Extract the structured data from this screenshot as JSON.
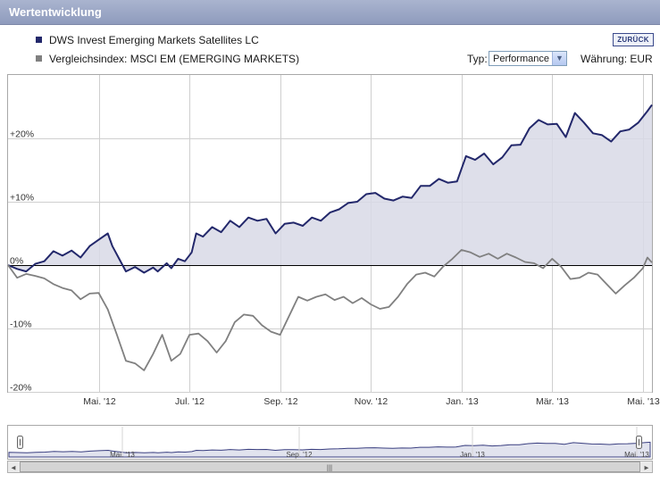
{
  "header": {
    "title": "Wertentwicklung"
  },
  "legend": {
    "fund": {
      "label": "DWS Invest Emerging Markets Satellites LC",
      "color": "#23286b"
    },
    "index": {
      "label": "Vergleichsindex: MSCI EM (EMERGING MARKETS)",
      "color": "#808080"
    }
  },
  "controls": {
    "back_label": "ZURÜCK",
    "typ_label": "Typ:",
    "typ_value": "Performance",
    "currency_label": "Währung: EUR"
  },
  "navigator": {
    "tick_labels": [
      "Mai. '13",
      "Sep. '12",
      "Jan. '13",
      "Mai. '13"
    ]
  },
  "chart_data": {
    "type": "line",
    "x_unit": "months since Mar 2012 start",
    "xlim": [
      0,
      14.2
    ],
    "ylim": [
      -20,
      30
    ],
    "y_ticks": [
      {
        "v": 20,
        "label": "+20%"
      },
      {
        "v": 10,
        "label": "+10%"
      },
      {
        "v": 0,
        "label": "0%"
      },
      {
        "v": -10,
        "label": "-10%"
      },
      {
        "v": -20,
        "label": "-20%"
      }
    ],
    "x_ticks": [
      {
        "v": 2,
        "label": "Mai. '12"
      },
      {
        "v": 4,
        "label": "Jul. '12"
      },
      {
        "v": 6,
        "label": "Sep. '12"
      },
      {
        "v": 8,
        "label": "Nov. '12"
      },
      {
        "v": 10,
        "label": "Jan. '13"
      },
      {
        "v": 12,
        "label": "Mär. '13"
      },
      {
        "v": 14,
        "label": "Mai. '13"
      }
    ],
    "grid": true,
    "series": [
      {
        "name": "DWS Invest Emerging Markets Satellites LC",
        "color": "#23286b",
        "fill": "#d8d9e6",
        "points": [
          [
            0,
            0
          ],
          [
            0.2,
            -0.6
          ],
          [
            0.4,
            -1.0
          ],
          [
            0.6,
            0.2
          ],
          [
            0.8,
            0.6
          ],
          [
            1.0,
            2.2
          ],
          [
            1.2,
            1.5
          ],
          [
            1.4,
            2.3
          ],
          [
            1.6,
            1.2
          ],
          [
            1.8,
            3.0
          ],
          [
            2.0,
            4.0
          ],
          [
            2.2,
            5.0
          ],
          [
            2.3,
            3.0
          ],
          [
            2.45,
            1.0
          ],
          [
            2.6,
            -1.0
          ],
          [
            2.8,
            -0.3
          ],
          [
            3.0,
            -1.2
          ],
          [
            3.2,
            -0.4
          ],
          [
            3.3,
            -1.0
          ],
          [
            3.5,
            0.3
          ],
          [
            3.6,
            -0.5
          ],
          [
            3.75,
            1.0
          ],
          [
            3.9,
            0.6
          ],
          [
            4.05,
            2.0
          ],
          [
            4.15,
            5.0
          ],
          [
            4.3,
            4.5
          ],
          [
            4.5,
            6.0
          ],
          [
            4.7,
            5.2
          ],
          [
            4.9,
            7.0
          ],
          [
            5.1,
            6.0
          ],
          [
            5.3,
            7.5
          ],
          [
            5.5,
            7.0
          ],
          [
            5.7,
            7.3
          ],
          [
            5.9,
            5.0
          ],
          [
            6.1,
            6.5
          ],
          [
            6.3,
            6.7
          ],
          [
            6.5,
            6.2
          ],
          [
            6.7,
            7.5
          ],
          [
            6.9,
            7.0
          ],
          [
            7.1,
            8.3
          ],
          [
            7.3,
            8.8
          ],
          [
            7.5,
            9.8
          ],
          [
            7.7,
            10.0
          ],
          [
            7.9,
            11.2
          ],
          [
            8.1,
            11.4
          ],
          [
            8.3,
            10.5
          ],
          [
            8.5,
            10.2
          ],
          [
            8.7,
            10.8
          ],
          [
            8.9,
            10.6
          ],
          [
            9.1,
            12.5
          ],
          [
            9.3,
            12.5
          ],
          [
            9.5,
            13.6
          ],
          [
            9.7,
            13.0
          ],
          [
            9.9,
            13.2
          ],
          [
            10.1,
            17.2
          ],
          [
            10.3,
            16.6
          ],
          [
            10.5,
            17.6
          ],
          [
            10.7,
            15.9
          ],
          [
            10.9,
            17.0
          ],
          [
            11.1,
            18.9
          ],
          [
            11.3,
            19.0
          ],
          [
            11.5,
            21.6
          ],
          [
            11.7,
            22.9
          ],
          [
            11.9,
            22.2
          ],
          [
            12.1,
            22.3
          ],
          [
            12.3,
            20.2
          ],
          [
            12.5,
            24.0
          ],
          [
            12.7,
            22.5
          ],
          [
            12.9,
            20.8
          ],
          [
            13.1,
            20.5
          ],
          [
            13.3,
            19.5
          ],
          [
            13.5,
            21.1
          ],
          [
            13.7,
            21.4
          ],
          [
            13.9,
            22.5
          ],
          [
            14.1,
            24.3
          ],
          [
            14.2,
            25.3
          ]
        ]
      },
      {
        "name": "Vergleichsindex: MSCI EM (EMERGING MARKETS)",
        "color": "#808080",
        "points": [
          [
            0,
            0
          ],
          [
            0.2,
            -2.0
          ],
          [
            0.4,
            -1.4
          ],
          [
            0.6,
            -1.7
          ],
          [
            0.8,
            -2.1
          ],
          [
            1.0,
            -3.0
          ],
          [
            1.2,
            -3.6
          ],
          [
            1.4,
            -4.0
          ],
          [
            1.6,
            -5.4
          ],
          [
            1.8,
            -4.5
          ],
          [
            2.0,
            -4.4
          ],
          [
            2.2,
            -7.0
          ],
          [
            2.4,
            -11.0
          ],
          [
            2.6,
            -15.1
          ],
          [
            2.8,
            -15.5
          ],
          [
            3.0,
            -16.6
          ],
          [
            3.2,
            -14.0
          ],
          [
            3.4,
            -11.0
          ],
          [
            3.6,
            -15.1
          ],
          [
            3.8,
            -14.0
          ],
          [
            4.0,
            -11.0
          ],
          [
            4.2,
            -10.8
          ],
          [
            4.4,
            -12.0
          ],
          [
            4.6,
            -13.8
          ],
          [
            4.8,
            -12.0
          ],
          [
            5.0,
            -9.0
          ],
          [
            5.2,
            -7.8
          ],
          [
            5.4,
            -8.0
          ],
          [
            5.6,
            -9.5
          ],
          [
            5.8,
            -10.5
          ],
          [
            6.0,
            -11.0
          ],
          [
            6.2,
            -8.0
          ],
          [
            6.4,
            -5.0
          ],
          [
            6.6,
            -5.6
          ],
          [
            6.8,
            -5.0
          ],
          [
            7.0,
            -4.6
          ],
          [
            7.2,
            -5.5
          ],
          [
            7.4,
            -5.0
          ],
          [
            7.6,
            -6.0
          ],
          [
            7.8,
            -5.2
          ],
          [
            8.0,
            -6.2
          ],
          [
            8.2,
            -6.9
          ],
          [
            8.4,
            -6.6
          ],
          [
            8.6,
            -5.0
          ],
          [
            8.8,
            -3.0
          ],
          [
            9.0,
            -1.5
          ],
          [
            9.2,
            -1.2
          ],
          [
            9.4,
            -1.8
          ],
          [
            9.6,
            -0.2
          ],
          [
            9.8,
            1.0
          ],
          [
            10.0,
            2.4
          ],
          [
            10.2,
            2.0
          ],
          [
            10.4,
            1.3
          ],
          [
            10.6,
            1.8
          ],
          [
            10.8,
            1.0
          ],
          [
            11.0,
            1.8
          ],
          [
            11.2,
            1.2
          ],
          [
            11.4,
            0.5
          ],
          [
            11.6,
            0.3
          ],
          [
            11.8,
            -0.5
          ],
          [
            12.0,
            1.0
          ],
          [
            12.2,
            -0.3
          ],
          [
            12.4,
            -2.2
          ],
          [
            12.6,
            -2.0
          ],
          [
            12.8,
            -1.2
          ],
          [
            13.0,
            -1.5
          ],
          [
            13.2,
            -3.0
          ],
          [
            13.4,
            -4.5
          ],
          [
            13.6,
            -3.2
          ],
          [
            13.8,
            -2.0
          ],
          [
            14.0,
            -0.5
          ],
          [
            14.1,
            1.2
          ],
          [
            14.2,
            0.4
          ]
        ]
      }
    ]
  }
}
